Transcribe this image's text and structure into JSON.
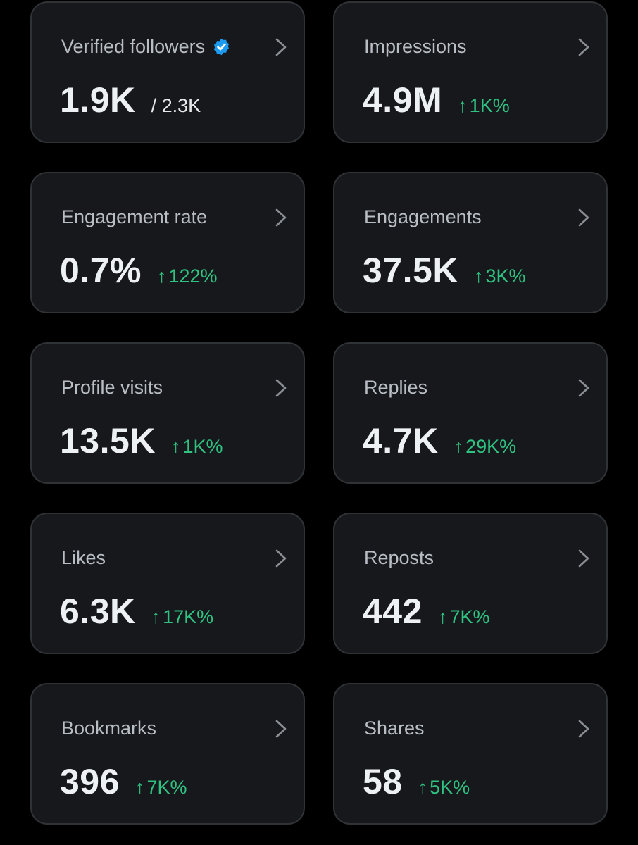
{
  "colors": {
    "background": "#000000",
    "card_background": "#16181c",
    "card_border": "#2f3336",
    "label": "#b9bec4",
    "value": "#eef1f3",
    "positive_change": "#2fc281",
    "verified_badge": "#1d9bf0"
  },
  "cards": [
    {
      "label": "Verified followers",
      "value": "1.9K",
      "total": "/ 2.3K",
      "icon": "verified-badge-icon"
    },
    {
      "label": "Impressions",
      "value": "4.9M",
      "change": "1K%"
    },
    {
      "label": "Engagement rate",
      "value": "0.7%",
      "change": "122%"
    },
    {
      "label": "Engagements",
      "value": "37.5K",
      "change": "3K%"
    },
    {
      "label": "Profile visits",
      "value": "13.5K",
      "change": "1K%"
    },
    {
      "label": "Replies",
      "value": "4.7K",
      "change": "29K%"
    },
    {
      "label": "Likes",
      "value": "6.3K",
      "change": "17K%"
    },
    {
      "label": "Reposts",
      "value": "442",
      "change": "7K%"
    },
    {
      "label": "Bookmarks",
      "value": "396",
      "change": "7K%"
    },
    {
      "label": "Shares",
      "value": "58",
      "change": "5K%"
    }
  ],
  "change_arrow": "↑"
}
